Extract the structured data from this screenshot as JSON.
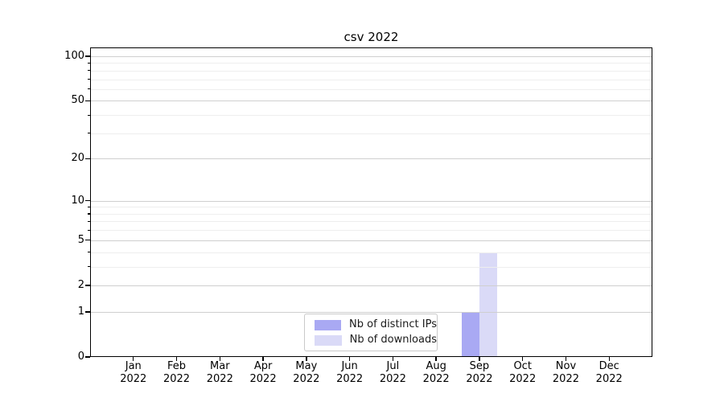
{
  "chart_data": {
    "type": "bar",
    "title": "csv 2022",
    "categories": [
      "Jan",
      "Feb",
      "Mar",
      "Apr",
      "May",
      "Jun",
      "Jul",
      "Aug",
      "Sep",
      "Oct",
      "Nov",
      "Dec"
    ],
    "year": "2022",
    "series": [
      {
        "name": "Nb of distinct IPs",
        "color": "#a9a9f3",
        "values": [
          0,
          0,
          0,
          0,
          0,
          0,
          0,
          0,
          1,
          0,
          0,
          0
        ]
      },
      {
        "name": "Nb of downloads",
        "color": "#dadaf7",
        "values": [
          0,
          0,
          0,
          0,
          0,
          0,
          0,
          0,
          4,
          0,
          0,
          0
        ]
      }
    ],
    "yscale": "log1p",
    "yticks": [
      0,
      1,
      2,
      5,
      10,
      20,
      50,
      100
    ],
    "ylim": [
      0,
      115
    ],
    "xlabel": "",
    "ylabel": "",
    "grid": {
      "major_color": "#cfcfcf",
      "minor_color": "#eeeeee"
    },
    "legend_position": "lower center",
    "axis_color": "#000000",
    "background": "#ffffff"
  }
}
